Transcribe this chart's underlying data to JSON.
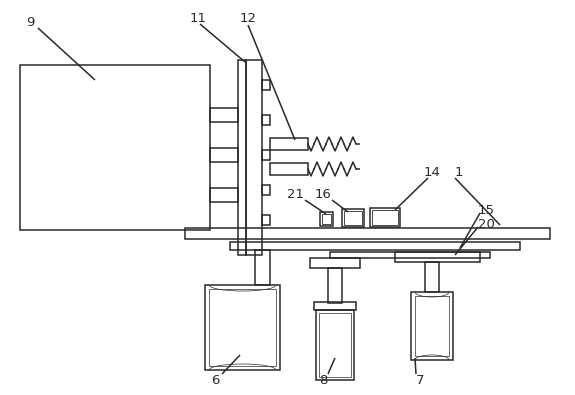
{
  "bg_color": "#ffffff",
  "line_color": "#2a2a2a",
  "lw": 1.1,
  "fig_w": 5.75,
  "fig_h": 3.95,
  "dpi": 100
}
